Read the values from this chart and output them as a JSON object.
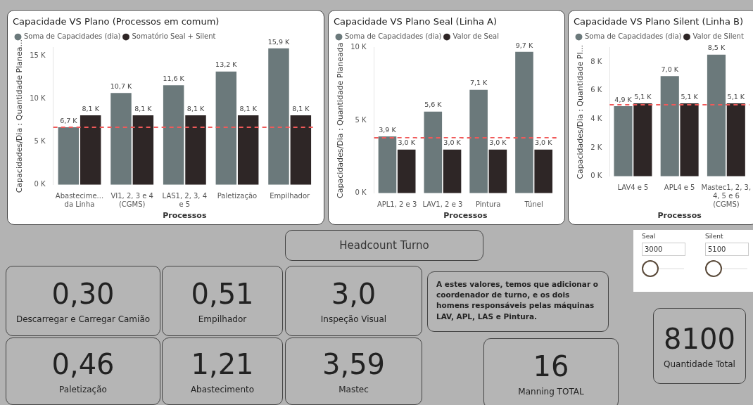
{
  "chart_data": [
    {
      "type": "bar",
      "title": "Capacidade VS Plano (Processos em comum)",
      "xlabel": "Processos",
      "ylabel": "Capacidades/Dia : Quantidade Planea...",
      "legend": "top left",
      "categories": [
        "Abastecime... da Linha",
        "VI1, 2, 3 e 4 (CGMS)",
        "LAS1, 2, 3, 4 e 5",
        "Paletização",
        "Empilhador"
      ],
      "series": [
        {
          "name": "Soma de Capacidades (dia)",
          "color": "#6b797b",
          "values": [
            6700,
            10700,
            11600,
            13200,
            15900
          ],
          "value_labels": [
            "6,7 K",
            "10,7 K",
            "11,6 K",
            "13,2 K",
            "15,9 K"
          ]
        },
        {
          "name": "Somatório Seal + Silent",
          "color": "#2e2626",
          "values": [
            8100,
            8100,
            8100,
            8100,
            8100
          ],
          "value_labels": [
            "8,1 K",
            "8,1 K",
            "8,1 K",
            "8,1 K",
            "8,1 K"
          ]
        }
      ],
      "ylim": [
        0,
        16000
      ],
      "yticks": [
        {
          "value": 0,
          "label": "0 K"
        },
        {
          "value": 5000,
          "label": "5 K"
        },
        {
          "value": 10000,
          "label": "10 K"
        },
        {
          "value": 15000,
          "label": "15 K"
        }
      ],
      "ref_lines": [
        {
          "axis": "y",
          "value": 6700,
          "color": "#f05a5a",
          "line_style": "dashed"
        }
      ]
    },
    {
      "type": "bar",
      "title": "Capacidade VS Plano Seal (Linha A)",
      "xlabel": "Processos",
      "ylabel": "Capacidades/Dia : Quantidade Planeada",
      "legend": "top left",
      "categories": [
        "APL1, 2 e 3",
        "LAV1, 2 e 3",
        "Pintura",
        "Túnel"
      ],
      "series": [
        {
          "name": "Soma de Capacidades (dia)",
          "color": "#6b797b",
          "values": [
            3900,
            5600,
            7100,
            9700
          ],
          "value_labels": [
            "3,9 K",
            "5,6 K",
            "7,1 K",
            "9,7 K"
          ]
        },
        {
          "name": "Valor de Seal",
          "color": "#2e2626",
          "values": [
            3000,
            3000,
            3000,
            3000
          ],
          "value_labels": [
            "3,0 K",
            "3,0 K",
            "3,0 K",
            "3,0 K"
          ]
        }
      ],
      "ylim": [
        0,
        10000
      ],
      "yticks": [
        {
          "value": 0,
          "label": "0 K"
        },
        {
          "value": 5000,
          "label": "5 K"
        },
        {
          "value": 10000,
          "label": "10 K"
        }
      ],
      "ref_lines": [
        {
          "axis": "y",
          "value": 3800,
          "color": "#f05a5a",
          "line_style": "dashed"
        }
      ]
    },
    {
      "type": "bar",
      "title": "Capacidade VS Plano Silent (Linha B)",
      "xlabel": "Processos",
      "ylabel": "Capacidades/Dia : Quantidade Pl...",
      "legend": "top left",
      "categories": [
        "LAV4 e 5",
        "APL4 e 5",
        "Mastec1, 2, 3, 4, 5 e 6 (CGMS)"
      ],
      "series": [
        {
          "name": "Soma de Capacidades (dia)",
          "color": "#6b797b",
          "values": [
            4900,
            7000,
            8500
          ],
          "value_labels": [
            "4,9 K",
            "7,0 K",
            "8,5 K"
          ]
        },
        {
          "name": "Valor de Silent",
          "color": "#2e2626",
          "values": [
            5100,
            5100,
            5100
          ],
          "value_labels": [
            "5,1 K",
            "5,1 K",
            "5,1 K"
          ]
        }
      ],
      "ylim": [
        0,
        9000
      ],
      "yticks": [
        {
          "value": 0,
          "label": "0 K"
        },
        {
          "value": 2000,
          "label": "2 K"
        },
        {
          "value": 4000,
          "label": "4 K"
        },
        {
          "value": 6000,
          "label": "6 K"
        },
        {
          "value": 8000,
          "label": "8 K"
        }
      ],
      "ref_lines": [
        {
          "axis": "y",
          "value": 5000,
          "color": "#f05a5a",
          "line_style": "dashed"
        }
      ]
    },
    {
      "type": "other",
      "title": "Headcount Turno",
      "annotations": [
        "0,30",
        "Descarregar e Carregar Camião",
        "0,51",
        "Empilhador",
        "3,0",
        "Inspeção Visual",
        "0,46",
        "Paletização",
        "1,21",
        "Abastecimento",
        "3,59",
        "Mastec"
      ]
    },
    {
      "type": "other",
      "annotations": [
        "A estes valores, temos que adicionar o coordenador de turno, e os dois homens responsáveis pelas máquinas LAV, APL, LAS e Pintura."
      ]
    },
    {
      "type": "other",
      "annotations": [
        "16",
        "Manning TOTAL"
      ]
    },
    {
      "type": "other",
      "annotations": [
        "8100",
        "Quantidade Total"
      ]
    },
    {
      "type": "other",
      "annotations": [
        "Seal",
        "3000",
        "Silent",
        "5100"
      ]
    }
  ]
}
